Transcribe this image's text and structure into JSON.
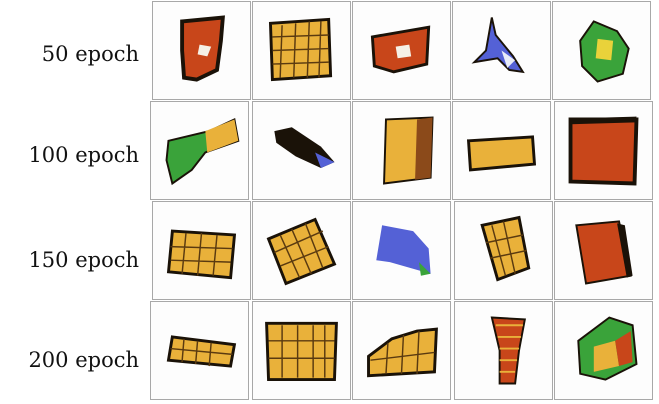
{
  "rows": [
    {
      "label": "50 epoch"
    },
    {
      "label": "100 epoch"
    },
    {
      "label": "150 epoch"
    },
    {
      "label": "200 epoch"
    }
  ],
  "colors": {
    "orange": "#c8461a",
    "yellow": "#e9b13a",
    "green": "#3aa33a",
    "blue": "#5461d6",
    "dark": "#1a1208"
  }
}
